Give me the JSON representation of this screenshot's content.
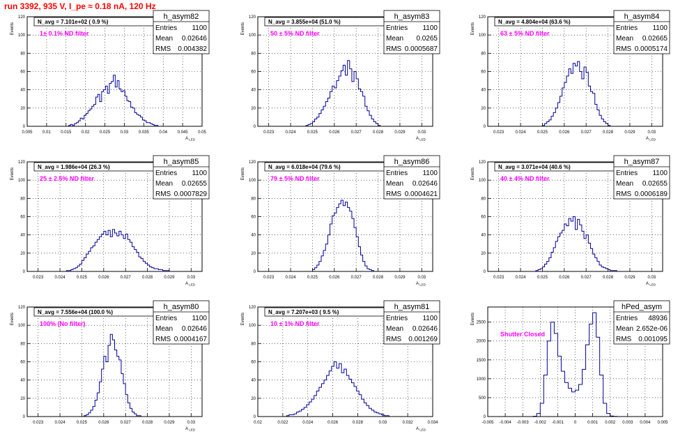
{
  "page": {
    "title": "run 3392,   935 V, I_pe ≈ 0.18 nA, 120 Hz"
  },
  "colors": {
    "histogram_line": "#000099",
    "filter_label": "#ff00ff",
    "run_title": "#ff0000",
    "grid": "#000000"
  },
  "stats_labels": {
    "entries": "Entries",
    "mean": "Mean",
    "rms": "RMS"
  },
  "chart_data": [
    {
      "type": "bar",
      "name": "h_asym82",
      "navg": "N_avg = 7.101e+02 ( 0.9 %)",
      "label": "1± 0.1% ND filter",
      "ylabel": "Events",
      "xlabel": "A_LED",
      "stats": {
        "entries": "1100",
        "mean": "0.02646",
        "rms": "0.004382"
      },
      "xlim": [
        0.005,
        0.05
      ],
      "ylim": [
        0,
        120
      ],
      "xticks": [
        "0.005",
        "0.01",
        "0.015",
        "0.02",
        "0.025",
        "0.03",
        "0.035",
        "0.04",
        "0.045",
        "0.05"
      ],
      "yticks": [
        "0",
        "20",
        "40",
        "60",
        "80",
        "100",
        "120"
      ],
      "x": [
        0.0159,
        0.0164,
        0.0169,
        0.0174,
        0.0179,
        0.0184,
        0.0189,
        0.0194,
        0.0199,
        0.0204,
        0.0209,
        0.0214,
        0.0219,
        0.0224,
        0.0229,
        0.0234,
        0.0239,
        0.0244,
        0.0249,
        0.0254,
        0.0259,
        0.0264,
        0.0269,
        0.0274,
        0.0279,
        0.0284,
        0.0289,
        0.0294,
        0.0299,
        0.0304,
        0.0309,
        0.0314,
        0.0319,
        0.0324,
        0.0329,
        0.0334,
        0.0339,
        0.0344,
        0.0349,
        0.0354,
        0.0359,
        0.0364,
        0.0369,
        0.0374,
        0.0379,
        0.0384
      ],
      "values": [
        1,
        2,
        1,
        3,
        4,
        6,
        9,
        8,
        12,
        14,
        17,
        19,
        22,
        24,
        32,
        35,
        27,
        38,
        40,
        44,
        36,
        47,
        49,
        56,
        43,
        50,
        41,
        38,
        39,
        33,
        28,
        27,
        21,
        20,
        15,
        13,
        12,
        10,
        7,
        6,
        4,
        4,
        3,
        2,
        1,
        1
      ]
    },
    {
      "type": "bar",
      "name": "h_asym83",
      "navg": "N_avg = 3.855e+04 (51.0 %)",
      "label": "50 ± 5% ND filter",
      "ylabel": "Events",
      "xlabel": "A_LED",
      "stats": {
        "entries": "1100",
        "mean": "0.0265",
        "rms": "0.0005687"
      },
      "xlim": [
        0.0225,
        0.0305
      ],
      "ylim": [
        0,
        120
      ],
      "xticks": [
        "0.023",
        "0.024",
        "0.025",
        "0.026",
        "0.027",
        "0.028",
        "0.029",
        "0.03"
      ],
      "yticks": [
        "0",
        "20",
        "40",
        "60",
        "80",
        "100",
        "120"
      ],
      "x": [
        0.02475,
        0.02485,
        0.02495,
        0.02505,
        0.02515,
        0.02525,
        0.02535,
        0.02545,
        0.02555,
        0.02565,
        0.02575,
        0.02585,
        0.02595,
        0.02605,
        0.02615,
        0.02625,
        0.02635,
        0.02645,
        0.02655,
        0.02665,
        0.02675,
        0.02685,
        0.02695,
        0.02705,
        0.02715,
        0.02725,
        0.02735,
        0.02745,
        0.02755,
        0.02765,
        0.02775,
        0.02785,
        0.02795,
        0.02805
      ],
      "values": [
        1,
        2,
        3,
        5,
        8,
        10,
        14,
        18,
        22,
        27,
        31,
        38,
        44,
        42,
        50,
        55,
        61,
        67,
        56,
        72,
        63,
        49,
        60,
        52,
        41,
        38,
        33,
        22,
        17,
        12,
        8,
        5,
        3,
        1
      ]
    },
    {
      "type": "bar",
      "name": "h_asym84",
      "navg": "N_avg = 4.804e+04 (63.6 %)",
      "label": "63 ± 5% ND filter",
      "ylabel": "Events",
      "xlabel": "A_LED",
      "stats": {
        "entries": "1100",
        "mean": "0.02665",
        "rms": "0.0005174"
      },
      "xlim": [
        0.0225,
        0.0305
      ],
      "ylim": [
        0,
        120
      ],
      "xticks": [
        "0.023",
        "0.024",
        "0.025",
        "0.026",
        "0.027",
        "0.028",
        "0.029",
        "0.03"
      ],
      "yticks": [
        "0",
        "20",
        "40",
        "60",
        "80",
        "100",
        "120"
      ],
      "x": [
        0.02505,
        0.02515,
        0.02525,
        0.02535,
        0.02545,
        0.02555,
        0.02565,
        0.02575,
        0.02585,
        0.02595,
        0.02605,
        0.02615,
        0.02625,
        0.02635,
        0.02645,
        0.02655,
        0.02665,
        0.02675,
        0.02685,
        0.02695,
        0.02705,
        0.02715,
        0.02725,
        0.02735,
        0.02745,
        0.02755,
        0.02765,
        0.02775,
        0.02785,
        0.02795,
        0.02805
      ],
      "values": [
        1,
        3,
        5,
        7,
        11,
        15,
        20,
        26,
        33,
        42,
        48,
        55,
        63,
        58,
        69,
        66,
        71,
        60,
        52,
        65,
        59,
        44,
        38,
        36,
        24,
        18,
        12,
        8,
        5,
        3,
        1
      ]
    },
    {
      "type": "bar",
      "name": "h_asym85",
      "navg": "N_avg = 1.986e+04 (26.3 %)",
      "label": "25 ± 2.5% ND filter",
      "ylabel": "Events",
      "xlabel": "A_LED",
      "stats": {
        "entries": "1100",
        "mean": "0.02655",
        "rms": "0.0007829"
      },
      "xlim": [
        0.0225,
        0.0305
      ],
      "ylim": [
        0,
        120
      ],
      "xticks": [
        "0.023",
        "0.024",
        "0.025",
        "0.026",
        "0.027",
        "0.028",
        "0.029",
        "0.03"
      ],
      "yticks": [
        "0",
        "20",
        "40",
        "60",
        "80",
        "100",
        "120"
      ],
      "x": [
        0.02435,
        0.02445,
        0.02455,
        0.02465,
        0.02475,
        0.02485,
        0.02495,
        0.02505,
        0.02515,
        0.02525,
        0.02535,
        0.02545,
        0.02555,
        0.02565,
        0.02575,
        0.02585,
        0.02595,
        0.02605,
        0.02615,
        0.02625,
        0.02635,
        0.02645,
        0.02655,
        0.02665,
        0.02675,
        0.02685,
        0.02695,
        0.02705,
        0.02715,
        0.02725,
        0.02735,
        0.02745,
        0.02755,
        0.02765,
        0.02775,
        0.02785,
        0.02795,
        0.02805,
        0.02815,
        0.02825,
        0.02835,
        0.02845,
        0.02855,
        0.02865,
        0.02875,
        0.02885,
        0.02895
      ],
      "values": [
        1,
        1,
        2,
        3,
        4,
        6,
        8,
        12,
        15,
        19,
        22,
        26,
        28,
        32,
        35,
        38,
        41,
        44,
        40,
        45,
        38,
        46,
        42,
        39,
        44,
        40,
        36,
        41,
        35,
        32,
        27,
        24,
        21,
        16,
        14,
        11,
        9,
        7,
        5,
        4,
        3,
        3,
        2,
        2,
        1,
        1,
        1
      ]
    },
    {
      "type": "bar",
      "name": "h_asym86",
      "navg": "N_avg = 6.018e+04 (79.6 %)",
      "label": "79 ± 5% ND filter",
      "ylabel": "Events",
      "xlabel": "A_LED",
      "stats": {
        "entries": "1100",
        "mean": "0.02646",
        "rms": "0.0004621"
      },
      "xlim": [
        0.0225,
        0.0305
      ],
      "ylim": [
        0,
        120
      ],
      "xticks": [
        "0.023",
        "0.024",
        "0.025",
        "0.026",
        "0.027",
        "0.028",
        "0.029",
        "0.03"
      ],
      "yticks": [
        "0",
        "20",
        "40",
        "60",
        "80",
        "100",
        "120"
      ],
      "x": [
        0.02505,
        0.02515,
        0.02525,
        0.02535,
        0.02545,
        0.02555,
        0.02565,
        0.02575,
        0.02585,
        0.02595,
        0.02605,
        0.02615,
        0.02625,
        0.02635,
        0.02645,
        0.02655,
        0.02665,
        0.02675,
        0.02685,
        0.02695,
        0.02705,
        0.02715,
        0.02725,
        0.02735,
        0.02745,
        0.02755,
        0.02765,
        0.02775
      ],
      "values": [
        2,
        4,
        7,
        11,
        17,
        23,
        30,
        40,
        52,
        61,
        64,
        70,
        74,
        78,
        72,
        76,
        70,
        66,
        58,
        48,
        38,
        27,
        18,
        11,
        6,
        3,
        2,
        1
      ]
    },
    {
      "type": "bar",
      "name": "h_asym87",
      "navg": "N_avg = 3.071e+04 (40.6 %)",
      "label": "40 ± 4% ND filter",
      "ylabel": "Events",
      "xlabel": "A_LED",
      "stats": {
        "entries": "1100",
        "mean": "0.02655",
        "rms": "0.0006189"
      },
      "xlim": [
        0.0225,
        0.0305
      ],
      "ylim": [
        0,
        120
      ],
      "xticks": [
        "0.023",
        "0.024",
        "0.025",
        "0.026",
        "0.027",
        "0.028",
        "0.029",
        "0.03"
      ],
      "yticks": [
        "0",
        "20",
        "40",
        "60",
        "80",
        "100",
        "120"
      ],
      "x": [
        0.02475,
        0.02485,
        0.02495,
        0.02505,
        0.02515,
        0.02525,
        0.02535,
        0.02545,
        0.02555,
        0.02565,
        0.02575,
        0.02585,
        0.02595,
        0.02605,
        0.02615,
        0.02625,
        0.02635,
        0.02645,
        0.02655,
        0.02665,
        0.02675,
        0.02685,
        0.02695,
        0.02705,
        0.02715,
        0.02725,
        0.02735,
        0.02745,
        0.02755,
        0.02765,
        0.02775,
        0.02785,
        0.02795,
        0.02805,
        0.02815,
        0.02825,
        0.02835
      ],
      "values": [
        1,
        2,
        3,
        5,
        8,
        11,
        15,
        21,
        26,
        33,
        38,
        42,
        45,
        52,
        50,
        58,
        55,
        60,
        46,
        57,
        51,
        44,
        36,
        40,
        31,
        25,
        19,
        15,
        11,
        7,
        5,
        4,
        3,
        2,
        1,
        1,
        1
      ]
    },
    {
      "type": "bar",
      "name": "h_asym80",
      "navg": "N_avg = 7.556e+04 (100.0 %)",
      "label": "100% (No filter)",
      "ylabel": "Events",
      "xlabel": "A_LED",
      "stats": {
        "entries": "1100",
        "mean": "0.02646",
        "rms": "0.0004167"
      },
      "xlim": [
        0.0225,
        0.0305
      ],
      "ylim": [
        0,
        120
      ],
      "xticks": [
        "0.023",
        "0.024",
        "0.025",
        "0.026",
        "0.027",
        "0.028",
        "0.029",
        "0.03"
      ],
      "yticks": [
        "0",
        "20",
        "40",
        "60",
        "80",
        "100",
        "120"
      ],
      "x": [
        0.02515,
        0.02525,
        0.02535,
        0.02545,
        0.02555,
        0.02565,
        0.02575,
        0.02585,
        0.02595,
        0.02605,
        0.02615,
        0.02625,
        0.02635,
        0.02645,
        0.02655,
        0.02665,
        0.02675,
        0.02685,
        0.02695,
        0.02705,
        0.02715,
        0.02725,
        0.02735,
        0.02745,
        0.02755,
        0.02765
      ],
      "values": [
        1,
        2,
        4,
        7,
        11,
        18,
        26,
        38,
        52,
        66,
        60,
        78,
        90,
        84,
        73,
        66,
        62,
        47,
        36,
        24,
        15,
        9,
        5,
        3,
        1,
        1
      ]
    },
    {
      "type": "bar",
      "name": "h_asym81",
      "navg": "N_avg = 7.207e+03 ( 9.5 %)",
      "label": "10 ± 1% ND filter",
      "ylabel": "Events",
      "xlabel": "A_LED",
      "stats": {
        "entries": "1100",
        "mean": "0.02646",
        "rms": "0.001269"
      },
      "xlim": [
        0.02,
        0.034
      ],
      "ylim": [
        0,
        120
      ],
      "xticks": [
        "0.02",
        "0.022",
        "0.024",
        "0.026",
        "0.028",
        "0.03",
        "0.032",
        "0.034"
      ],
      "yticks": [
        "0",
        "20",
        "40",
        "60",
        "80",
        "100",
        "120"
      ],
      "x": [
        0.0224,
        0.0226,
        0.0228,
        0.023,
        0.0232,
        0.0234,
        0.0236,
        0.0238,
        0.024,
        0.0242,
        0.0244,
        0.0246,
        0.0248,
        0.025,
        0.0252,
        0.0254,
        0.0256,
        0.0258,
        0.026,
        0.0262,
        0.0264,
        0.0266,
        0.0268,
        0.027,
        0.0272,
        0.0274,
        0.0276,
        0.0278,
        0.028,
        0.0282,
        0.0284,
        0.0286,
        0.0288,
        0.029,
        0.0292,
        0.0294,
        0.0296,
        0.0298,
        0.03,
        0.0302,
        0.0304
      ],
      "values": [
        1,
        2,
        2,
        3,
        5,
        6,
        8,
        10,
        13,
        16,
        19,
        23,
        28,
        32,
        36,
        40,
        45,
        50,
        55,
        60,
        53,
        58,
        48,
        52,
        45,
        41,
        37,
        33,
        28,
        24,
        19,
        15,
        12,
        9,
        7,
        5,
        4,
        3,
        2,
        1,
        1
      ]
    },
    {
      "type": "bar",
      "name": "hPed_asym",
      "navg": "",
      "label": "Shutter Closed",
      "ylabel": "Events",
      "xlabel": "",
      "stats": {
        "entries": "48936",
        "mean": "2.652e-06",
        "rms": "0.001095"
      },
      "xlim": [
        -0.005,
        0.005
      ],
      "ylim": [
        0,
        2900
      ],
      "xticks": [
        "-0.005",
        "-0.004",
        "-0.003",
        "-0.002",
        "-0.001",
        "0",
        "0.001",
        "0.002",
        "0.003",
        "0.004",
        "0.005"
      ],
      "yticks": [
        "0",
        "500",
        "1000",
        "1500",
        "2000",
        "2500"
      ],
      "x": [
        -0.0023,
        -0.0021,
        -0.0019,
        -0.0017,
        -0.0015,
        -0.0013,
        -0.0011,
        -0.0009,
        -0.0007,
        -0.0005,
        -0.0003,
        -0.0001,
        0.0001,
        0.0003,
        0.0005,
        0.0007,
        0.0009,
        0.0011,
        0.0013,
        0.0015,
        0.0017,
        0.0019,
        0.0021,
        0.0023
      ],
      "values": [
        10,
        80,
        350,
        1100,
        2000,
        2500,
        2200,
        1600,
        1200,
        900,
        750,
        650,
        700,
        850,
        1250,
        1900,
        2450,
        2750,
        2100,
        1100,
        350,
        80,
        15,
        5
      ]
    }
  ]
}
